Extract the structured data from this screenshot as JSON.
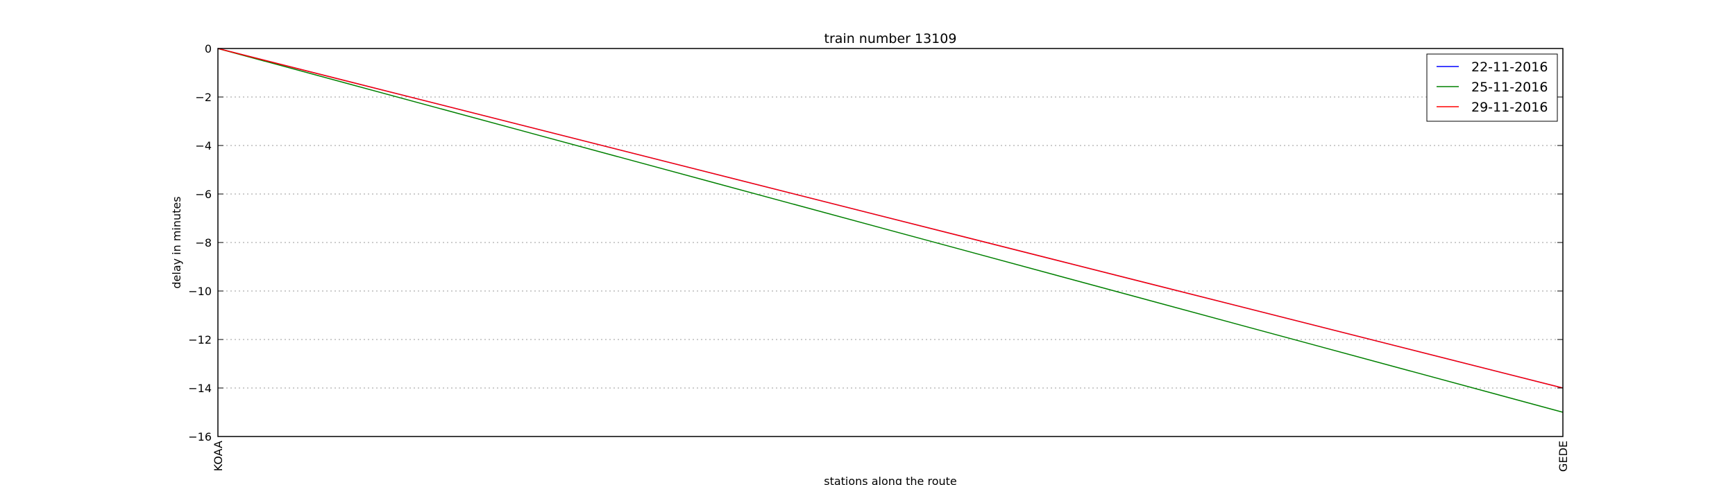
{
  "chart_data": {
    "type": "line",
    "title": "train number 13109",
    "xlabel": "stations along the route",
    "ylabel": "delay in minutes",
    "categories": [
      "KOAA",
      "GEDE"
    ],
    "ylim": [
      -16,
      0
    ],
    "yticks": [
      0,
      -2,
      -4,
      -6,
      -8,
      -10,
      -12,
      -14,
      -16
    ],
    "ytick_labels": [
      "0",
      "−2",
      "−4",
      "−6",
      "−8",
      "−10",
      "−12",
      "−14",
      "−16"
    ],
    "grid": "horizontal dotted",
    "legend_position": "top-right",
    "series": [
      {
        "name": "22-11-2016",
        "color": "#0000ff",
        "values": [
          0,
          -14
        ]
      },
      {
        "name": "25-11-2016",
        "color": "#008000",
        "values": [
          0,
          -15
        ]
      },
      {
        "name": "29-11-2016",
        "color": "#ff0000",
        "values": [
          0,
          -14
        ]
      }
    ]
  }
}
